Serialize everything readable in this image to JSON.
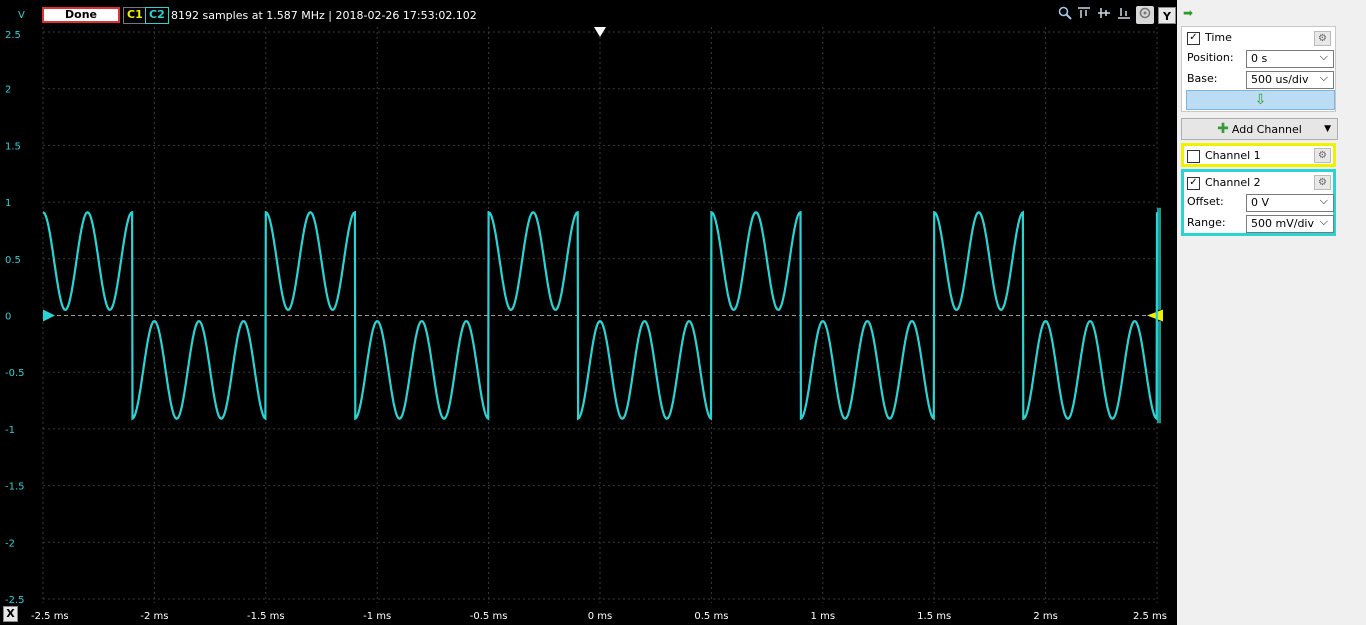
{
  "toolbar": {
    "y_unit": "V",
    "done_label": "Done",
    "c1_label": "C1",
    "c2_label": "C2",
    "acquisition_info": "8192 samples at 1.587 MHz | 2018-02-26 17:53:02.102",
    "y_button": "Y",
    "x_button": "X",
    "icons": [
      "zoom-icon",
      "align-top-icon",
      "align-middle-icon",
      "align-bottom-icon",
      "auto-scale-icon"
    ]
  },
  "plot": {
    "y_ticks": [
      "2.5",
      "2",
      "1.5",
      "1",
      "0.5",
      "0",
      "-0.5",
      "-1",
      "-1.5",
      "-2",
      "-2.5"
    ],
    "x_ticks": [
      "-2.5 ms",
      "-2 ms",
      "-1.5 ms",
      "-1 ms",
      "-0.5 ms",
      "0 ms",
      "0.5 ms",
      "1 ms",
      "1.5 ms",
      "2 ms",
      "2.5 ms"
    ],
    "colors": {
      "channel2": "#2ad4d4",
      "channel1": "#f0f000",
      "grid": "#3a3a3a",
      "background": "#000000"
    }
  },
  "chart_data": {
    "type": "line",
    "xlabel": "",
    "ylabel": "V",
    "xlim": [
      -2.5,
      2.5
    ],
    "ylim": [
      -2.5,
      2.5
    ],
    "grid": true,
    "series": [
      {
        "name": "C2",
        "description_of_shape": "square wave ±0.5 V with superimposed sine ripple of ±0.43 V",
        "square_period_ms": 1.0,
        "square_amplitude_V": 0.48,
        "ripple_period_ms": 0.2,
        "ripple_amplitude_V": 0.43,
        "peak_max_V": 0.95,
        "peak_min_V": -0.95
      }
    ]
  },
  "panel": {
    "time": {
      "label": "Time",
      "checked": true,
      "position_label": "Position:",
      "position_value": "0 s",
      "base_label": "Base:",
      "base_value": "500 us/div"
    },
    "add_channel_label": "Add Channel",
    "channel1": {
      "label": "Channel 1",
      "checked": false,
      "color": "#f0f000"
    },
    "channel2": {
      "label": "Channel 2",
      "checked": true,
      "color": "#2ad4d4",
      "offset_label": "Offset:",
      "offset_value": "0 V",
      "range_label": "Range:",
      "range_value": "500 mV/div"
    }
  }
}
